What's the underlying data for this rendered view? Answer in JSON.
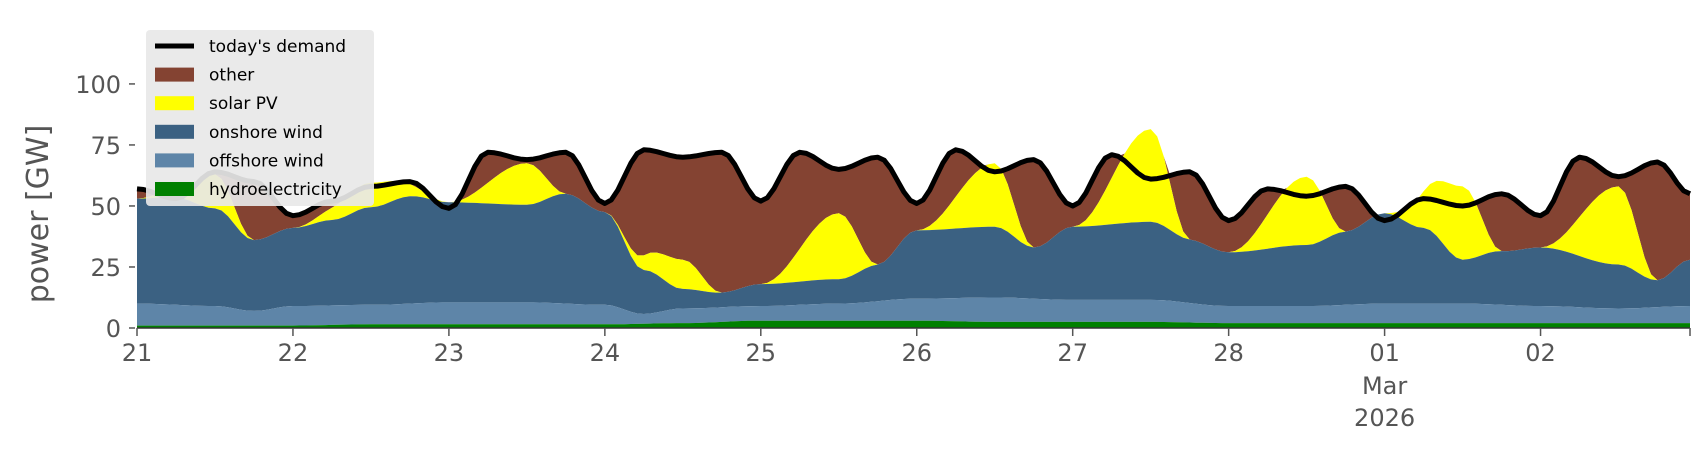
{
  "chart_data": {
    "type": "area",
    "xlabel": "",
    "ylabel": "power [GW]",
    "ylim": [
      0,
      118
    ],
    "yticks": [
      0,
      25,
      50,
      75,
      100
    ],
    "x_start": "2026-02-21T00:00",
    "x_end": "2026-03-02T23:00",
    "x_tick_labels": [
      {
        "date": "2026-02-21",
        "label": "21"
      },
      {
        "date": "2026-02-22",
        "label": "22"
      },
      {
        "date": "2026-02-23",
        "label": "23"
      },
      {
        "date": "2026-02-24",
        "label": "24"
      },
      {
        "date": "2026-02-25",
        "label": "25"
      },
      {
        "date": "2026-02-26",
        "label": "26"
      },
      {
        "date": "2026-02-27",
        "label": "27"
      },
      {
        "date": "2026-02-28",
        "label": "28"
      },
      {
        "date": "2026-03-01",
        "label": "01",
        "sub": [
          "Mar",
          "2026"
        ]
      },
      {
        "date": "2026-03-02",
        "label": "02"
      }
    ],
    "grid": false,
    "background": "#ffffff",
    "legend_position": "top-left",
    "legend": [
      {
        "name": "today's demand",
        "kind": "line",
        "color": "#000000"
      },
      {
        "name": "other",
        "kind": "patch",
        "color": "#844332"
      },
      {
        "name": "solar PV",
        "kind": "patch",
        "color": "#ffff00"
      },
      {
        "name": "onshore wind",
        "kind": "patch",
        "color": "#3b6182"
      },
      {
        "name": "offshore wind",
        "kind": "patch",
        "color": "#5e85a8"
      },
      {
        "name": "hydroelectricity",
        "kind": "patch",
        "color": "#008000"
      }
    ],
    "series": {
      "hydroelectricity": {
        "color": "#008000",
        "x": [
          "2026-02-21T00:00",
          "2026-02-21T12:00",
          "2026-02-22T00:00",
          "2026-02-22T12:00",
          "2026-02-23T00:00",
          "2026-02-23T12:00",
          "2026-02-24T00:00",
          "2026-02-24T12:00",
          "2026-02-25T00:00",
          "2026-02-25T12:00",
          "2026-02-26T00:00",
          "2026-02-26T12:00",
          "2026-02-27T00:00",
          "2026-02-27T12:00",
          "2026-02-28T00:00",
          "2026-02-28T12:00",
          "2026-03-01T00:00",
          "2026-03-01T12:00",
          "2026-03-02T00:00",
          "2026-03-02T12:00",
          "2026-03-02T23:00"
        ],
        "values": [
          1,
          1,
          1,
          1.5,
          1.5,
          1.5,
          1.5,
          2,
          3,
          3,
          3,
          2.5,
          2.5,
          2.5,
          2,
          2,
          2,
          2,
          2,
          2,
          2
        ]
      },
      "offshore wind": {
        "color": "#5e85a8",
        "x": [
          "2026-02-21T00:00",
          "2026-02-21T12:00",
          "2026-02-21T18:00",
          "2026-02-22T00:00",
          "2026-02-22T12:00",
          "2026-02-23T00:00",
          "2026-02-23T12:00",
          "2026-02-24T00:00",
          "2026-02-24T06:00",
          "2026-02-24T12:00",
          "2026-02-25T00:00",
          "2026-02-25T12:00",
          "2026-02-26T00:00",
          "2026-02-26T12:00",
          "2026-02-27T00:00",
          "2026-02-27T12:00",
          "2026-02-28T00:00",
          "2026-02-28T12:00",
          "2026-03-01T00:00",
          "2026-03-01T12:00",
          "2026-03-02T00:00",
          "2026-03-02T12:00",
          "2026-03-02T23:00"
        ],
        "values": [
          9,
          8,
          6,
          8,
          8,
          9,
          9,
          8,
          4,
          6,
          6,
          7,
          9,
          10,
          9,
          9,
          7,
          7,
          8,
          8,
          7,
          6,
          7
        ]
      },
      "onshore wind": {
        "color": "#3b6182",
        "x": [
          "2026-02-21T00:00",
          "2026-02-21T06:00",
          "2026-02-21T12:00",
          "2026-02-21T18:00",
          "2026-02-22T00:00",
          "2026-02-22T06:00",
          "2026-02-22T12:00",
          "2026-02-22T18:00",
          "2026-02-23T00:00",
          "2026-02-23T12:00",
          "2026-02-23T18:00",
          "2026-02-24T00:00",
          "2026-02-24T06:00",
          "2026-02-24T12:00",
          "2026-02-24T18:00",
          "2026-02-25T00:00",
          "2026-02-25T12:00",
          "2026-02-25T18:00",
          "2026-02-26T00:00",
          "2026-02-26T12:00",
          "2026-02-26T18:00",
          "2026-02-27T00:00",
          "2026-02-27T12:00",
          "2026-02-27T18:00",
          "2026-02-28T00:00",
          "2026-02-28T12:00",
          "2026-02-28T18:00",
          "2026-03-01T00:00",
          "2026-03-01T06:00",
          "2026-03-01T12:00",
          "2026-03-01T18:00",
          "2026-03-02T00:00",
          "2026-03-02T12:00",
          "2026-03-02T18:00",
          "2026-03-02T23:00"
        ],
        "values": [
          43,
          44,
          40,
          29,
          32,
          35,
          40,
          44,
          41,
          40,
          45,
          38,
          18,
          8,
          6,
          9,
          10,
          15,
          28,
          29,
          21,
          30,
          32,
          26,
          22,
          25,
          30,
          37,
          31,
          18,
          22,
          24,
          18,
          11,
          19
        ]
      },
      "solar PV": {
        "color": "#ffff00",
        "x": [
          "2026-02-21T00:00",
          "2026-02-21T06:00",
          "2026-02-21T12:00",
          "2026-02-21T18:00",
          "2026-02-22T00:00",
          "2026-02-22T12:00",
          "2026-02-23T00:00",
          "2026-02-23T12:00",
          "2026-02-23T18:00",
          "2026-02-24T00:00",
          "2026-02-24T12:00",
          "2026-02-24T18:00",
          "2026-02-25T00:00",
          "2026-02-25T12:00",
          "2026-02-25T18:00",
          "2026-02-26T00:00",
          "2026-02-26T12:00",
          "2026-02-26T18:00",
          "2026-02-27T00:00",
          "2026-02-27T12:00",
          "2026-02-27T18:00",
          "2026-02-28T00:00",
          "2026-02-28T12:00",
          "2026-02-28T18:00",
          "2026-03-01T00:00",
          "2026-03-01T12:00",
          "2026-03-01T18:00",
          "2026-03-02T00:00",
          "2026-03-02T12:00",
          "2026-03-02T18:00",
          "2026-03-02T23:00"
        ],
        "values": [
          0,
          3,
          14,
          0,
          0,
          10,
          0,
          17,
          0,
          0,
          12,
          0,
          0,
          27,
          0,
          0,
          26,
          0,
          0,
          38,
          0,
          0,
          28,
          0,
          0,
          30,
          0,
          0,
          32,
          0,
          0
        ]
      },
      "today's demand": {
        "color": "#000000",
        "x": [
          "2026-02-21T00:00",
          "2026-02-21T06:00",
          "2026-02-21T12:00",
          "2026-02-21T18:00",
          "2026-02-22T00:00",
          "2026-02-22T06:00",
          "2026-02-22T12:00",
          "2026-02-22T18:00",
          "2026-02-23T00:00",
          "2026-02-23T06:00",
          "2026-02-23T12:00",
          "2026-02-23T18:00",
          "2026-02-24T00:00",
          "2026-02-24T06:00",
          "2026-02-24T12:00",
          "2026-02-24T18:00",
          "2026-02-25T00:00",
          "2026-02-25T06:00",
          "2026-02-25T12:00",
          "2026-02-25T18:00",
          "2026-02-26T00:00",
          "2026-02-26T06:00",
          "2026-02-26T12:00",
          "2026-02-26T18:00",
          "2026-02-27T00:00",
          "2026-02-27T06:00",
          "2026-02-27T12:00",
          "2026-02-27T18:00",
          "2026-02-28T00:00",
          "2026-02-28T06:00",
          "2026-02-28T12:00",
          "2026-02-28T18:00",
          "2026-03-01T00:00",
          "2026-03-01T06:00",
          "2026-03-01T12:00",
          "2026-03-01T18:00",
          "2026-03-02T00:00",
          "2026-03-02T06:00",
          "2026-03-02T12:00",
          "2026-03-02T18:00",
          "2026-03-02T23:00"
        ],
        "values": [
          57,
          53,
          64,
          60,
          46,
          52,
          58,
          60,
          49,
          72,
          69,
          72,
          51,
          73,
          70,
          72,
          52,
          72,
          65,
          70,
          51,
          73,
          64,
          69,
          50,
          71,
          61,
          64,
          44,
          57,
          54,
          58,
          44,
          53,
          50,
          55,
          46,
          70,
          62,
          68,
          55
        ]
      }
    }
  }
}
